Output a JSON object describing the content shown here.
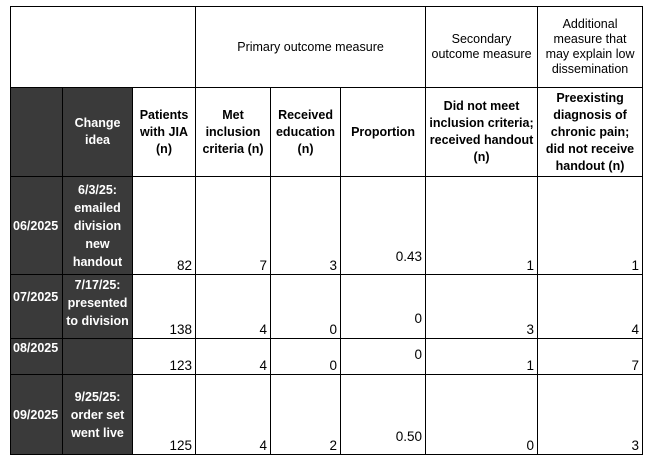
{
  "header_groups": {
    "primary": "Primary outcome measure",
    "secondary": "Secondary outcome measure",
    "additional": "Additional measure that may explain low dissemination"
  },
  "columns": {
    "change_idea": "Change idea",
    "patients_jia": "Patients with JIA (n)",
    "met_criteria": "Met inclusion criteria (n)",
    "received_education": "Received education (n)",
    "proportion": "Proportion",
    "did_not_meet": "Did not meet inclusion criteria; received handout (n)",
    "chronic_pain": "Preexisting diagnosis of chronic pain; did not receive handout (n)"
  },
  "rows": [
    {
      "month": "06/2025",
      "change_idea": "6/3/25: emailed division new handout",
      "patients_jia": "82",
      "met_criteria": "7",
      "received_education": "3",
      "proportion": "0.43",
      "did_not_meet": "1",
      "chronic_pain": "1"
    },
    {
      "month": "07/2025",
      "change_idea": "7/17/25: presented to division",
      "patients_jia": "138",
      "met_criteria": "4",
      "received_education": "0",
      "proportion": "0",
      "did_not_meet": "3",
      "chronic_pain": "4"
    },
    {
      "month": "08/2025",
      "change_idea": "",
      "patients_jia": "123",
      "met_criteria": "4",
      "received_education": "0",
      "proportion": "0",
      "did_not_meet": "1",
      "chronic_pain": "7"
    },
    {
      "month": "09/2025",
      "change_idea": "9/25/25: order set went live",
      "patients_jia": "125",
      "met_criteria": "4",
      "received_education": "2",
      "proportion": "0.50",
      "did_not_meet": "0",
      "chronic_pain": "3"
    }
  ]
}
